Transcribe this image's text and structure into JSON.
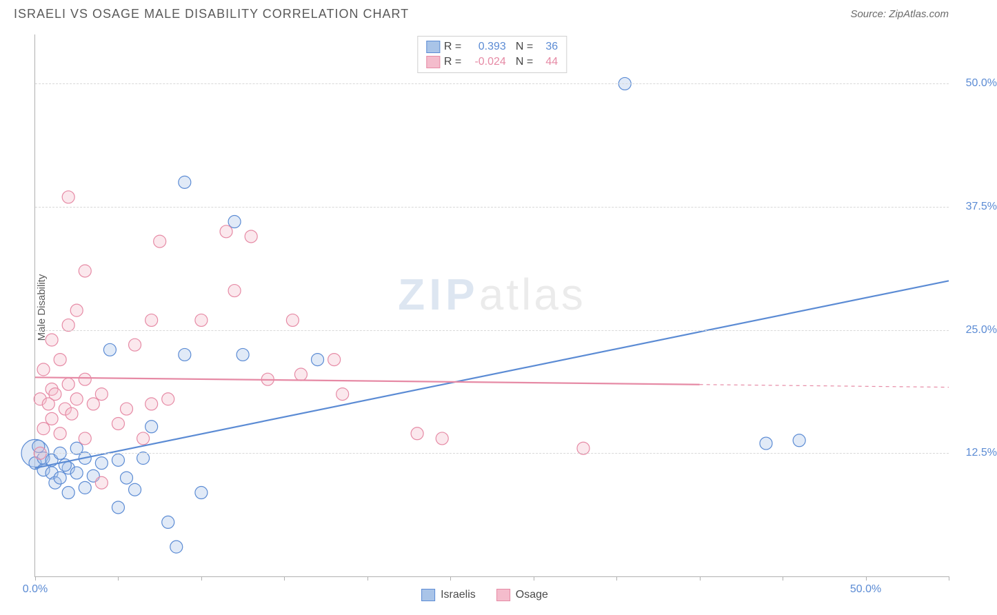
{
  "header": {
    "title": "ISRAELI VS OSAGE MALE DISABILITY CORRELATION CHART",
    "source": "Source: ZipAtlas.com"
  },
  "watermark": {
    "left": "ZIP",
    "right": "atlas"
  },
  "chart": {
    "type": "scatter",
    "ylabel": "Male Disability",
    "background_color": "#ffffff",
    "grid_color": "#d8d8d8",
    "axis_color": "#b0b0b0",
    "tick_label_color": "#5b8bd4",
    "label_fontsize": 15,
    "tick_fontsize": 16,
    "xlim": [
      0,
      55
    ],
    "ylim": [
      0,
      55
    ],
    "yticks": [
      12.5,
      25.0,
      37.5,
      50.0
    ],
    "ytick_labels": [
      "12.5%",
      "25.0%",
      "37.5%",
      "50.0%"
    ],
    "xticks_minor": [
      0,
      5,
      10,
      15,
      20,
      25,
      30,
      35,
      40,
      45,
      50,
      55
    ],
    "xtick_labels": [
      {
        "pos": 0,
        "text": "0.0%"
      },
      {
        "pos": 50,
        "text": "50.0%"
      }
    ],
    "marker_radius": 9,
    "marker_fill_opacity": 0.35,
    "marker_stroke_width": 1.2,
    "line_width": 2.2,
    "series": [
      {
        "name": "Israelis",
        "color": "#5b8bd4",
        "fill": "#a9c4e8",
        "r_value": "0.393",
        "n_value": "36",
        "trend": {
          "x1": 0,
          "y1": 11.0,
          "x2": 55,
          "y2": 30.0,
          "solid_until": 55
        },
        "points": [
          [
            0.0,
            11.5
          ],
          [
            0.5,
            10.8
          ],
          [
            0.5,
            12.0
          ],
          [
            1.0,
            10.5
          ],
          [
            1.0,
            11.8
          ],
          [
            1.2,
            9.5
          ],
          [
            1.5,
            10.0
          ],
          [
            1.5,
            12.5
          ],
          [
            2.0,
            8.5
          ],
          [
            2.0,
            11.0
          ],
          [
            2.5,
            10.5
          ],
          [
            2.5,
            13.0
          ],
          [
            3.0,
            9.0
          ],
          [
            3.0,
            12.0
          ],
          [
            3.5,
            10.2
          ],
          [
            4.0,
            11.5
          ],
          [
            4.5,
            23.0
          ],
          [
            5.0,
            7.0
          ],
          [
            5.0,
            11.8
          ],
          [
            5.5,
            10.0
          ],
          [
            6.0,
            8.8
          ],
          [
            6.5,
            12.0
          ],
          [
            7.0,
            15.2
          ],
          [
            8.0,
            5.5
          ],
          [
            8.5,
            3.0
          ],
          [
            9.0,
            40.0
          ],
          [
            9.0,
            22.5
          ],
          [
            10.0,
            8.5
          ],
          [
            12.0,
            36.0
          ],
          [
            12.5,
            22.5
          ],
          [
            17.0,
            22.0
          ],
          [
            35.5,
            50.0
          ],
          [
            44.0,
            13.5
          ],
          [
            46.0,
            13.8
          ],
          [
            0.2,
            13.2
          ],
          [
            1.8,
            11.3
          ]
        ],
        "big_point": {
          "x": 0.0,
          "y": 12.5,
          "r": 20
        }
      },
      {
        "name": "Osage",
        "color": "#e68aa5",
        "fill": "#f4bccc",
        "r_value": "-0.024",
        "n_value": "44",
        "trend": {
          "x1": 0,
          "y1": 20.2,
          "x2": 55,
          "y2": 19.2,
          "solid_until": 40
        },
        "points": [
          [
            0.3,
            18.0
          ],
          [
            0.5,
            21.0
          ],
          [
            0.5,
            15.0
          ],
          [
            0.8,
            17.5
          ],
          [
            1.0,
            19.0
          ],
          [
            1.0,
            24.0
          ],
          [
            1.0,
            16.0
          ],
          [
            1.2,
            18.5
          ],
          [
            1.5,
            14.5
          ],
          [
            1.5,
            22.0
          ],
          [
            1.8,
            17.0
          ],
          [
            2.0,
            25.5
          ],
          [
            2.0,
            19.5
          ],
          [
            2.0,
            38.5
          ],
          [
            2.2,
            16.5
          ],
          [
            2.5,
            18.0
          ],
          [
            2.5,
            27.0
          ],
          [
            3.0,
            31.0
          ],
          [
            3.0,
            14.0
          ],
          [
            3.0,
            20.0
          ],
          [
            3.5,
            17.5
          ],
          [
            4.0,
            9.5
          ],
          [
            4.0,
            18.5
          ],
          [
            5.0,
            15.5
          ],
          [
            5.5,
            17.0
          ],
          [
            6.0,
            23.5
          ],
          [
            6.5,
            14.0
          ],
          [
            7.0,
            17.5
          ],
          [
            7.0,
            26.0
          ],
          [
            7.5,
            34.0
          ],
          [
            8.0,
            18.0
          ],
          [
            10.0,
            26.0
          ],
          [
            11.5,
            35.0
          ],
          [
            12.0,
            29.0
          ],
          [
            13.0,
            34.5
          ],
          [
            14.0,
            20.0
          ],
          [
            15.5,
            26.0
          ],
          [
            16.0,
            20.5
          ],
          [
            18.0,
            22.0
          ],
          [
            18.5,
            18.5
          ],
          [
            23.0,
            14.5
          ],
          [
            24.5,
            14.0
          ],
          [
            33.0,
            13.0
          ],
          [
            0.3,
            12.5
          ]
        ]
      }
    ],
    "legend_bottom": [
      {
        "label": "Israelis",
        "color": "#5b8bd4",
        "fill": "#a9c4e8"
      },
      {
        "label": "Osage",
        "color": "#e68aa5",
        "fill": "#f4bccc"
      }
    ]
  }
}
